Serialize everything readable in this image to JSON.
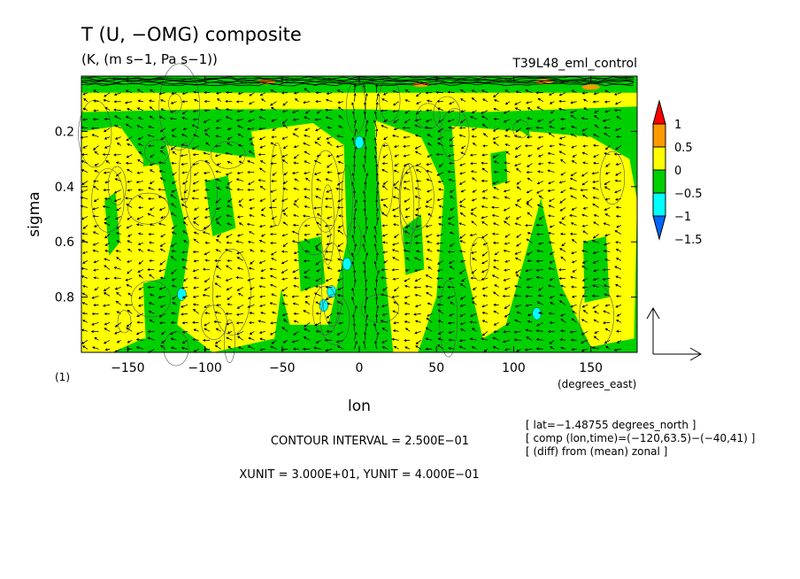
{
  "chart_data": {
    "type": "heatmap",
    "title": "T (U, −OMG) composite",
    "subtitle": "(K, (m s−1, Pa s−1))",
    "run_label": "T39L48_eml_control",
    "xlabel": "lon",
    "xunits": "(degrees_east)",
    "ylabel": "sigma",
    "xlim": [
      -180,
      180
    ],
    "ylim": [
      0.0,
      1.0
    ],
    "y_inverted": true,
    "x_ticks": [
      -150,
      -100,
      -50,
      0,
      50,
      100,
      150
    ],
    "x_tick_labels": [
      "−150",
      "−100",
      "−50",
      "0",
      "50",
      "100",
      "150"
    ],
    "y_ticks": [
      0.2,
      0.4,
      0.6,
      0.8
    ],
    "y_tick_labels": [
      "0.2",
      "0.4",
      "0.6",
      "0.8"
    ],
    "corner_label": "(1)",
    "colorbar": {
      "levels": [
        -1.5,
        -1,
        -0.5,
        0,
        0.5,
        1
      ],
      "labels": [
        "1",
        "0.5",
        "0",
        "−0.5",
        "−1",
        "−1.5"
      ],
      "colors": [
        "#0066ff",
        "#00ffff",
        "#00d000",
        "#ffff00",
        "#ff9900",
        "#ff0000"
      ]
    },
    "vector_unit_arrow": true,
    "info_lines": [
      "[ lat=−1.48755 degrees_north ]",
      "[ comp (lon,time)=(−120,63.5)−(−40,41) ]",
      "[ (diff) from (mean) zonal ]"
    ],
    "contour_interval": "CONTOUR INTERVAL = 2.500E−01",
    "units_line": "XUNIT = 3.000E+01, YUNIT = 4.000E−01"
  }
}
